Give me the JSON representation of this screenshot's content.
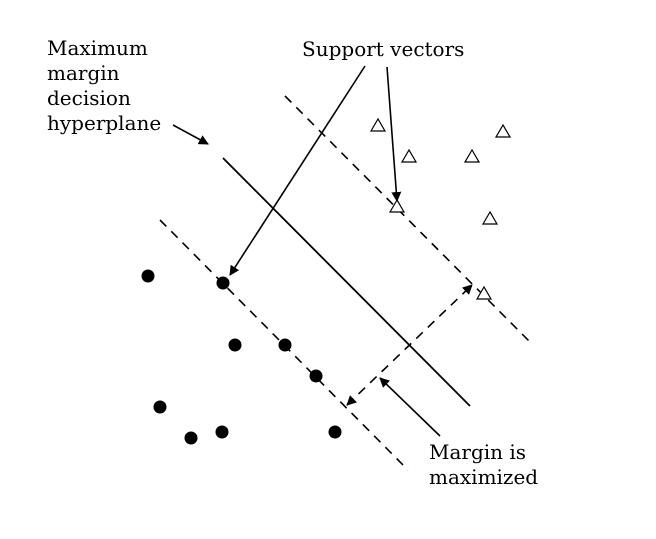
{
  "labels": {
    "hyperplane": [
      "Maximum",
      "margin",
      "decision",
      "hyperplane"
    ],
    "support_vectors": "Support vectors",
    "margin": [
      "Margin is",
      "maximized"
    ]
  },
  "colors": {
    "ink": "#000000",
    "background": "#ffffff"
  },
  "markers": {
    "class_a": "filled-circle",
    "class_b": "open-triangle"
  }
}
